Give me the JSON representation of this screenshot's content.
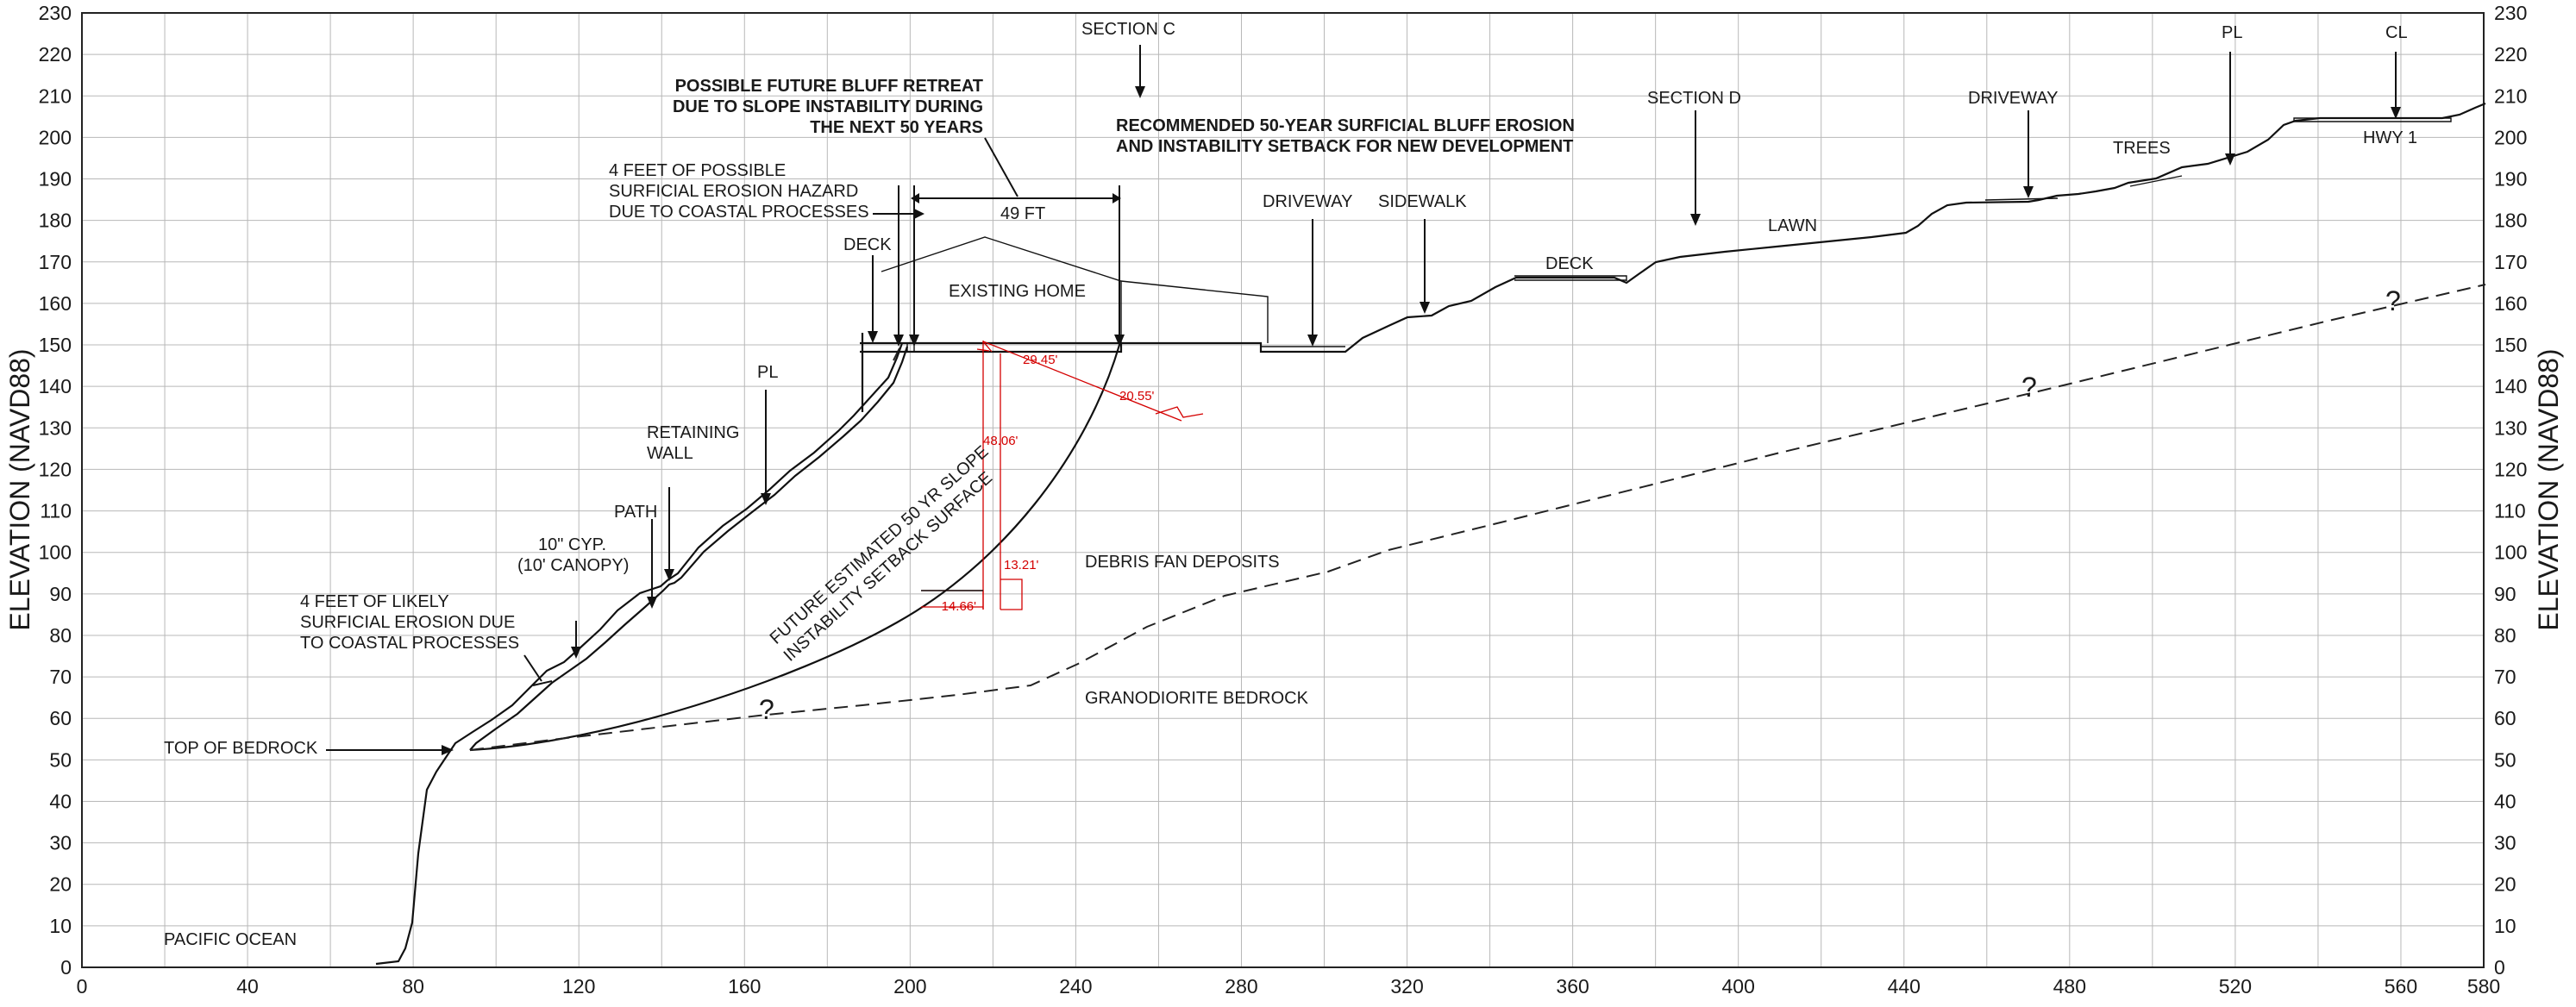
{
  "axes": {
    "y_label_left": "ELEVATION (NAVD88)",
    "y_label_right": "ELEVATION (NAVD88)",
    "x_ticks": [
      "0",
      "40",
      "80",
      "120",
      "160",
      "200",
      "240",
      "280",
      "320",
      "360",
      "400",
      "440",
      "480",
      "520",
      "560",
      "580"
    ],
    "y_ticks": [
      "0",
      "10",
      "20",
      "30",
      "40",
      "50",
      "60",
      "70",
      "80",
      "90",
      "100",
      "110",
      "120",
      "130",
      "140",
      "150",
      "160",
      "170",
      "180",
      "190",
      "200",
      "210",
      "220",
      "230"
    ]
  },
  "labels": {
    "section_c": "SECTION C",
    "section_d": "SECTION D",
    "retreat_title": [
      "POSSIBLE FUTURE BLUFF RETREAT",
      "DUE TO SLOPE INSTABILITY DURING",
      "THE NEXT 50 YEARS"
    ],
    "setback_title": [
      "RECOMMENDED 50-YEAR SURFICIAL BLUFF EROSION",
      "AND INSTABILITY SETBACK FOR NEW DEVELOPMENT"
    ],
    "possible_hazard": [
      "4 FEET OF POSSIBLE",
      "SURFICIAL EROSION HAZARD",
      "DUE TO COASTAL PROCESSES"
    ],
    "dim_49ft": "49 FT",
    "deck_left": "DECK",
    "existing_home": "EXISTING HOME",
    "driveway_mid": "DRIVEWAY",
    "sidewalk": "SIDEWALK",
    "deck_right": "DECK",
    "lawn": "LAWN",
    "driveway_right": "DRIVEWAY",
    "trees": "TREES",
    "hwy1": "HWY 1",
    "pl": "PL",
    "cl": "CL",
    "retaining_wall": [
      "RETAINING",
      "WALL"
    ],
    "path": "PATH",
    "canopy": [
      "10\" CYP.",
      "(10' CANOPY)"
    ],
    "likely_erosion": [
      "4 FEET OF LIKELY",
      "SURFICIAL EROSION DUE",
      "TO COASTAL PROCESSES"
    ],
    "top_of_bedrock": "TOP OF BEDROCK",
    "pacific_ocean": "PACIFIC OCEAN",
    "debris_fan": "DEBRIS FAN DEPOSITS",
    "granodiorite": "GRANODIORITE BEDROCK",
    "slope_surface": [
      "FUTURE ESTIMATED 50 YR SLOPE",
      "INSTABILITY SETBACK SURFACE"
    ],
    "question": "?"
  },
  "dimensions": {
    "d1": "29.45'",
    "d2": "20.55'",
    "d3": "48.06'",
    "d4": "13.21'",
    "d5": "14.66'"
  }
}
